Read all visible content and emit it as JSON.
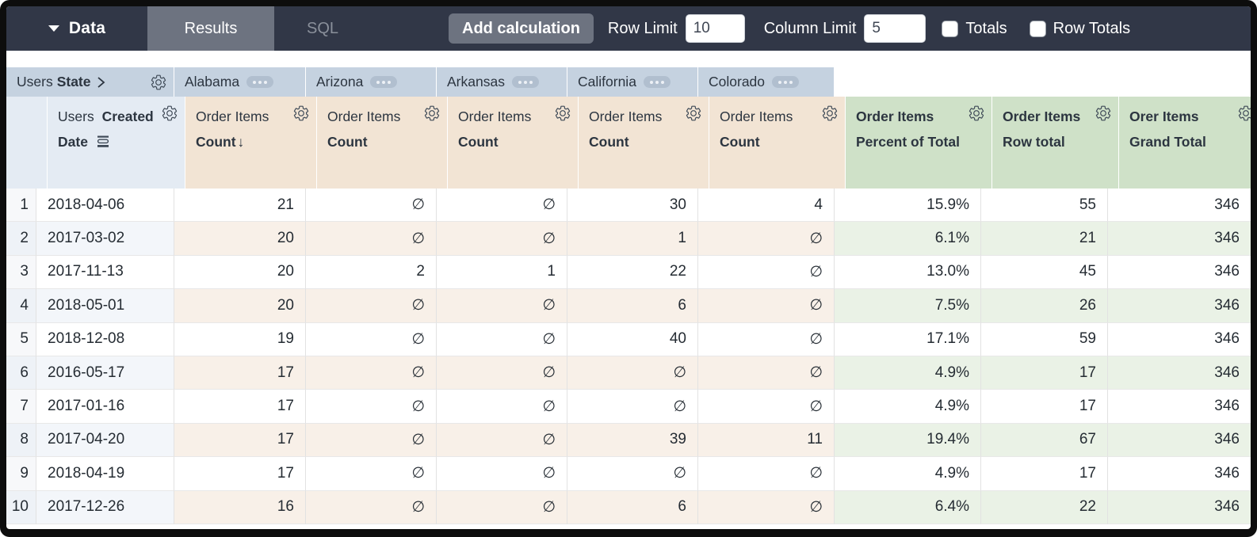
{
  "toolbar": {
    "data_label": "Data",
    "tabs": [
      {
        "label": "Results"
      },
      {
        "label": "SQL"
      }
    ],
    "add_calculation_label": "Add calculation",
    "row_limit": {
      "label": "Row Limit",
      "value": "10"
    },
    "column_limit": {
      "label": "Column Limit",
      "value": "5"
    },
    "totals": {
      "label": "Totals",
      "checked": false
    },
    "row_totals": {
      "label": "Row Totals",
      "checked": false
    }
  },
  "pivot": {
    "dimension": {
      "view": "Users",
      "field": "State"
    },
    "values": [
      "Alabama",
      "Arizona",
      "Arkansas",
      "California",
      "Colorado"
    ]
  },
  "row_dimension": {
    "view": "Users",
    "field": "Created Date"
  },
  "measure": {
    "view": "Order Items",
    "field": "Count"
  },
  "sorted_column": {
    "pivot_value": "Alabama",
    "direction": "desc",
    "arrow": "↓"
  },
  "calculations": [
    "Order Items Percent of Total",
    "Order Items Row total",
    "Orer Items Grand Total"
  ],
  "null_symbol": "∅",
  "colors": {
    "topbar_bg": "#313747",
    "active_tab_bg": "#6d7380",
    "pivot_header_bg": "#c5d2e0",
    "dimension_header_bg": "#e4ebf3",
    "measure_header_bg": "#f2e4d4",
    "calculation_header_bg": "#cfe1c8",
    "even_row_measure_tint": "#f8f0e8",
    "even_row_calc_tint": "#eaf2e6"
  },
  "table": {
    "rows": [
      {
        "index": "1",
        "date": "2018-04-06",
        "values": [
          "21",
          null,
          null,
          "30",
          "4"
        ],
        "calcs": [
          "15.9%",
          "55",
          "346"
        ]
      },
      {
        "index": "2",
        "date": "2017-03-02",
        "values": [
          "20",
          null,
          null,
          "1",
          null
        ],
        "calcs": [
          "6.1%",
          "21",
          "346"
        ]
      },
      {
        "index": "3",
        "date": "2017-11-13",
        "values": [
          "20",
          "2",
          "1",
          "22",
          null
        ],
        "calcs": [
          "13.0%",
          "45",
          "346"
        ]
      },
      {
        "index": "4",
        "date": "2018-05-01",
        "values": [
          "20",
          null,
          null,
          "6",
          null
        ],
        "calcs": [
          "7.5%",
          "26",
          "346"
        ]
      },
      {
        "index": "5",
        "date": "2018-12-08",
        "values": [
          "19",
          null,
          null,
          "40",
          null
        ],
        "calcs": [
          "17.1%",
          "59",
          "346"
        ]
      },
      {
        "index": "6",
        "date": "2016-05-17",
        "values": [
          "17",
          null,
          null,
          null,
          null
        ],
        "calcs": [
          "4.9%",
          "17",
          "346"
        ]
      },
      {
        "index": "7",
        "date": "2017-01-16",
        "values": [
          "17",
          null,
          null,
          null,
          null
        ],
        "calcs": [
          "4.9%",
          "17",
          "346"
        ]
      },
      {
        "index": "8",
        "date": "2017-04-20",
        "values": [
          "17",
          null,
          null,
          "39",
          "11"
        ],
        "calcs": [
          "19.4%",
          "67",
          "346"
        ]
      },
      {
        "index": "9",
        "date": "2018-04-19",
        "values": [
          "17",
          null,
          null,
          null,
          null
        ],
        "calcs": [
          "4.9%",
          "17",
          "346"
        ]
      },
      {
        "index": "10",
        "date": "2017-12-26",
        "values": [
          "16",
          null,
          null,
          "6",
          null
        ],
        "calcs": [
          "6.4%",
          "22",
          "346"
        ]
      }
    ]
  }
}
